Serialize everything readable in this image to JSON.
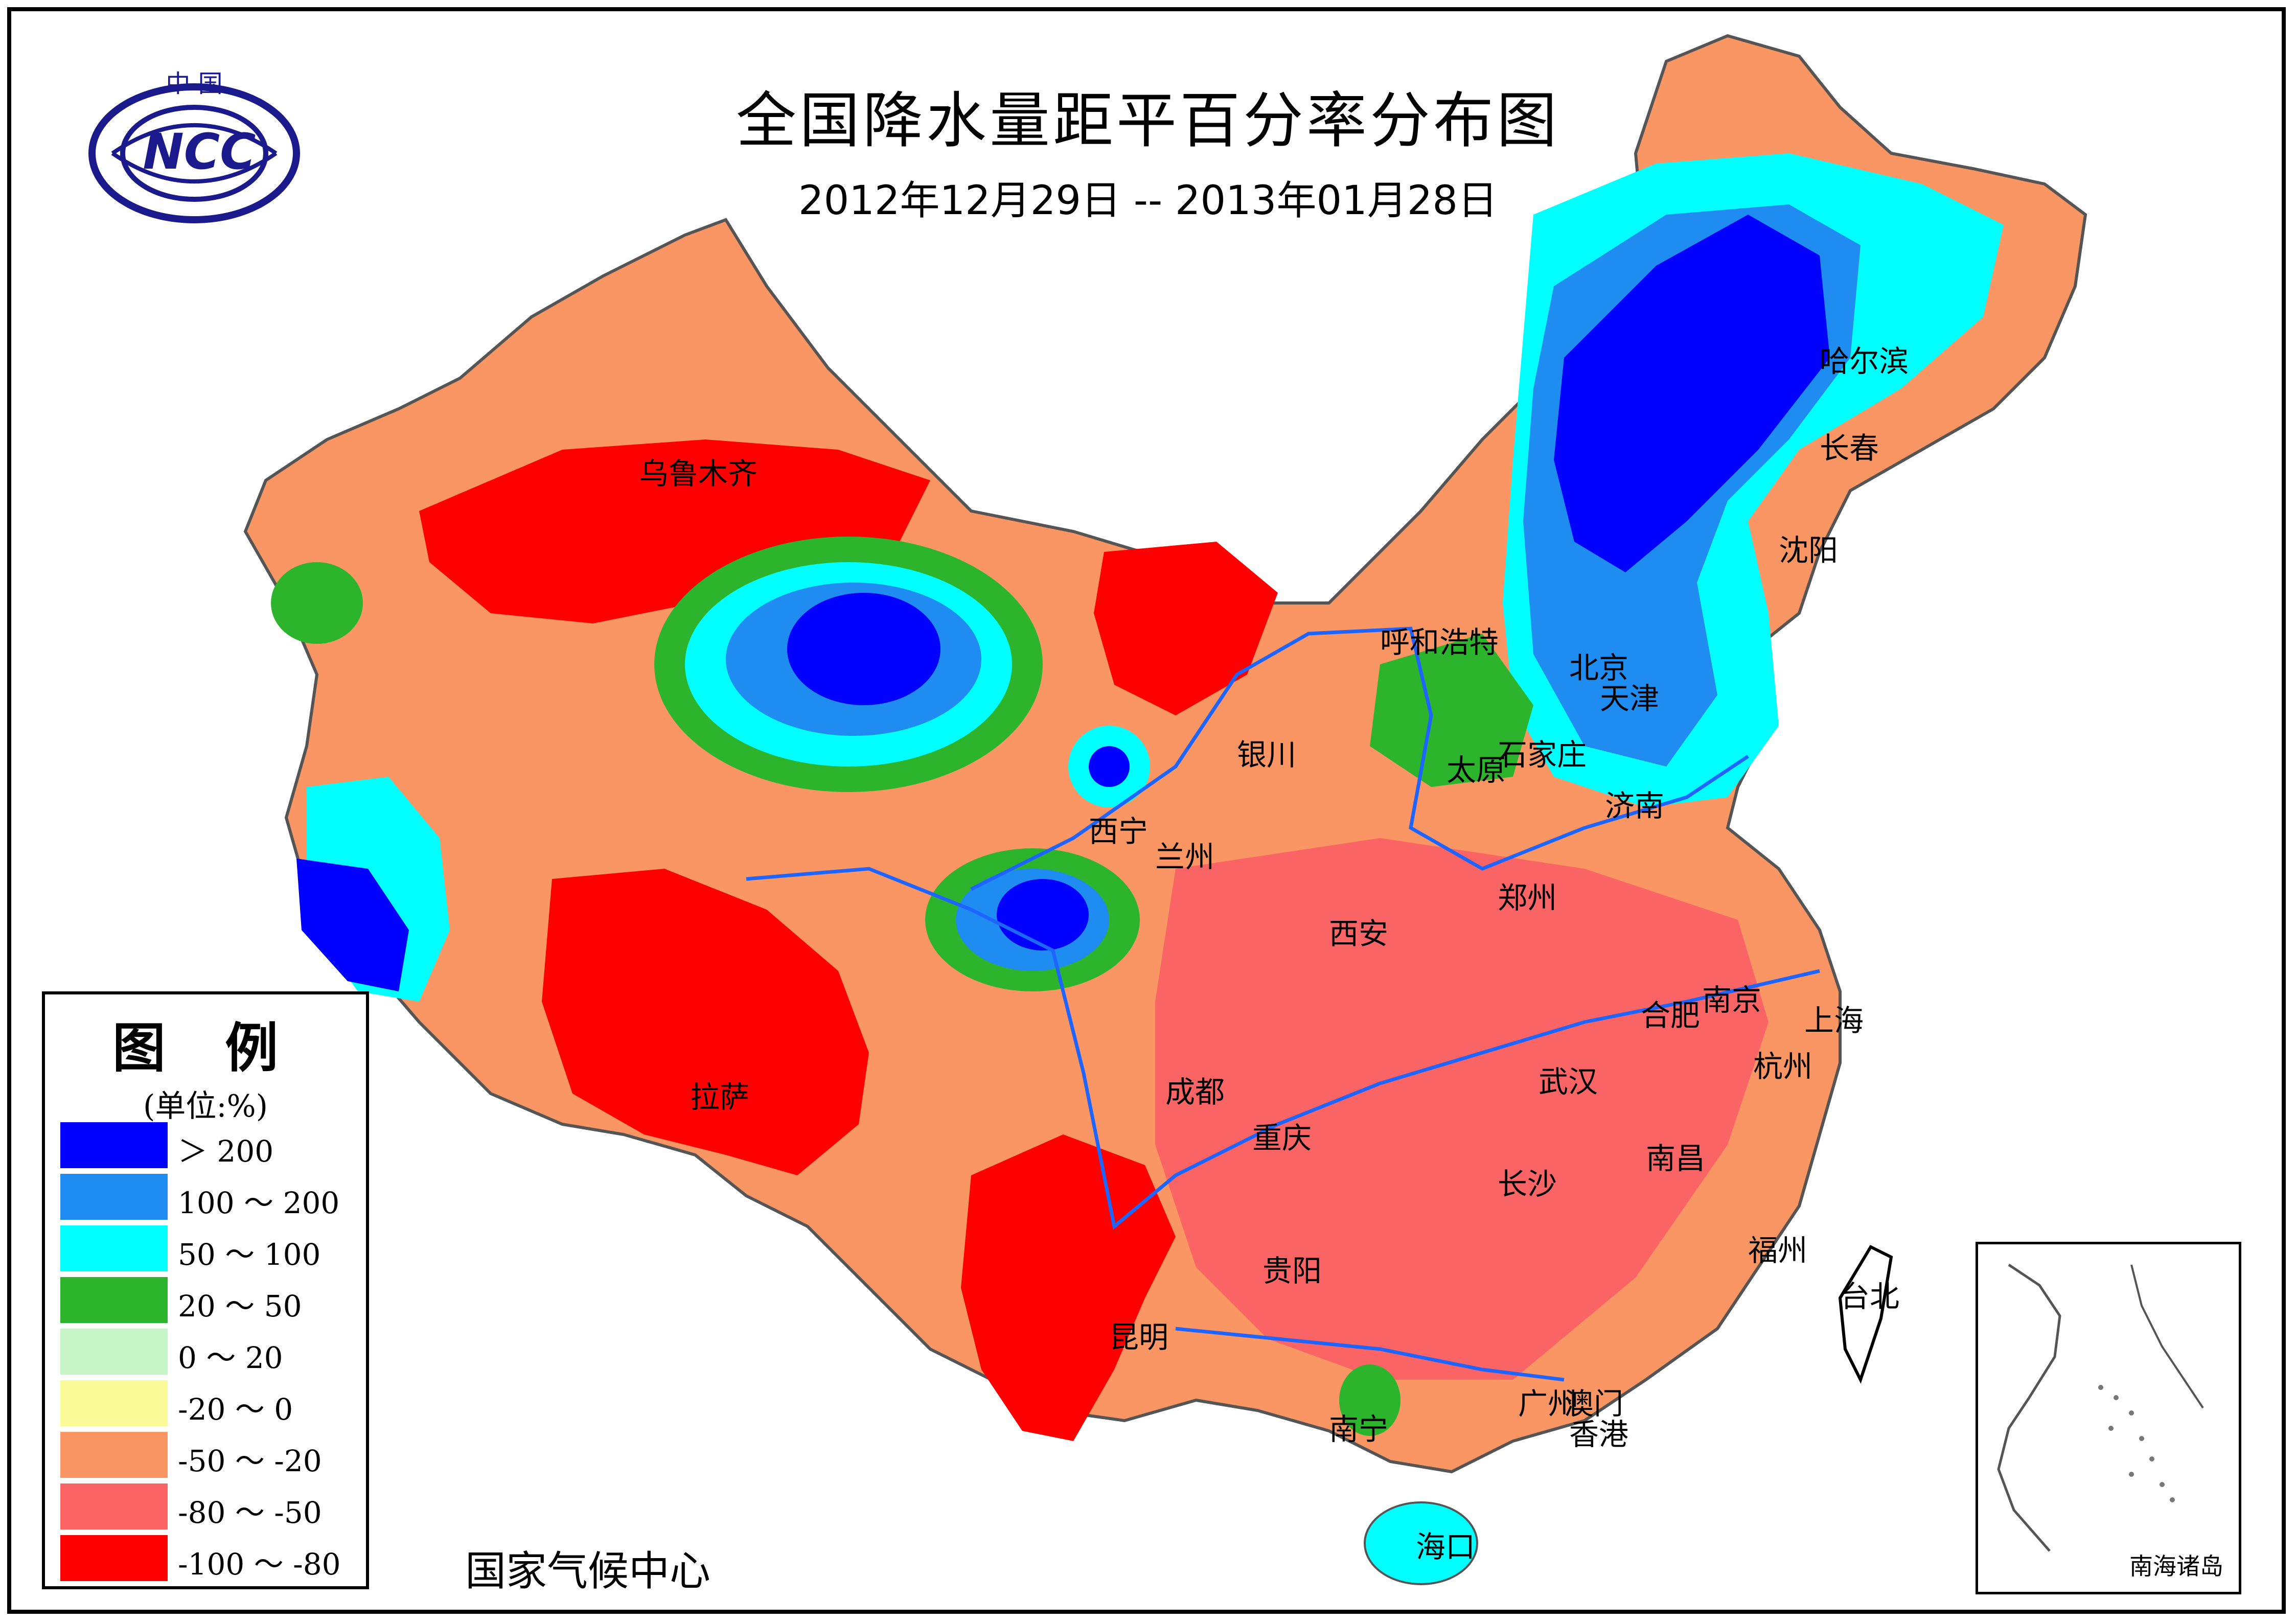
{
  "title": "全国降水量距平百分率分布图",
  "subtitle": "2012年12月29日 -- 2013年01月28日",
  "logo": {
    "top_text": "中 国",
    "center_text": "NCC"
  },
  "legend": {
    "title": "图 例",
    "unit": "(单位:%)",
    "items": [
      {
        "label": "＞ 200",
        "color": "#0000ff"
      },
      {
        "label": "100 ～ 200",
        "color": "#1e8cf0"
      },
      {
        "label": "50 ～ 100",
        "color": "#00ffff"
      },
      {
        "label": "20 ～ 50",
        "color": "#2db42d"
      },
      {
        "label": "0 ～ 20",
        "color": "#c8f5c8"
      },
      {
        "label": "-20 ～ 0",
        "color": "#fafa96"
      },
      {
        "label": "-50 ～ -20",
        "color": "#fa9664"
      },
      {
        "label": "-80 ～ -50",
        "color": "#fa6464"
      },
      {
        "label": "-100 ～ -80",
        "color": "#ff0000"
      }
    ]
  },
  "footer": "国家气候中心",
  "inset_label": "南海诸岛",
  "cities": [
    {
      "name": "乌鲁木齐"
    },
    {
      "name": "哈尔滨"
    },
    {
      "name": "长春"
    },
    {
      "name": "沈阳"
    },
    {
      "name": "呼和浩特"
    },
    {
      "name": "北京"
    },
    {
      "name": "天津"
    },
    {
      "name": "银川"
    },
    {
      "name": "太原"
    },
    {
      "name": "石家庄"
    },
    {
      "name": "济南"
    },
    {
      "name": "西宁"
    },
    {
      "name": "兰州"
    },
    {
      "name": "郑州"
    },
    {
      "name": "西安"
    },
    {
      "name": "南京"
    },
    {
      "name": "合肥"
    },
    {
      "name": "上海"
    },
    {
      "name": "杭州"
    },
    {
      "name": "拉萨"
    },
    {
      "name": "成都"
    },
    {
      "name": "武汉"
    },
    {
      "name": "重庆"
    },
    {
      "name": "南昌"
    },
    {
      "name": "长沙"
    },
    {
      "name": "福州"
    },
    {
      "name": "贵阳"
    },
    {
      "name": "台北"
    },
    {
      "name": "昆明"
    },
    {
      "name": "广州"
    },
    {
      "name": "澳门"
    },
    {
      "name": "香港"
    },
    {
      "name": "南宁"
    },
    {
      "name": "海口"
    }
  ]
}
